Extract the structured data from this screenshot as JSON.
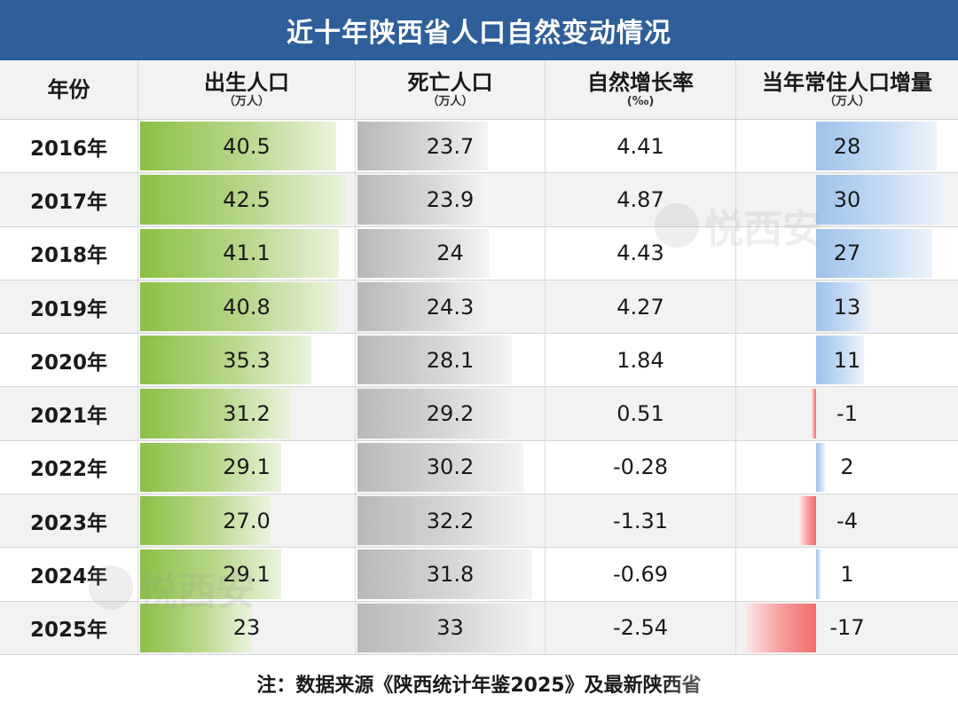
{
  "title": "近十年陕西省人口自然变动情况",
  "headers": {
    "year": "年份",
    "births": "出生人口",
    "births_unit": "（万人）",
    "deaths": "死亡人口",
    "deaths_unit": "（万人）",
    "rate": "自然增长率",
    "rate_unit": "(‰)",
    "increase": "当年常住人口增量",
    "increase_unit": "（万人）"
  },
  "rows": [
    {
      "year": "2016年",
      "births": "40.5",
      "deaths": "23.7",
      "rate": "4.41",
      "increase": "28"
    },
    {
      "year": "2017年",
      "births": "42.5",
      "deaths": "23.9",
      "rate": "4.87",
      "increase": "30"
    },
    {
      "year": "2018年",
      "births": "41.1",
      "deaths": "24",
      "rate": "4.43",
      "increase": "27"
    },
    {
      "year": "2019年",
      "births": "40.8",
      "deaths": "24.3",
      "rate": "4.27",
      "increase": "13"
    },
    {
      "year": "2020年",
      "births": "35.3",
      "deaths": "28.1",
      "rate": "1.84",
      "increase": "11"
    },
    {
      "year": "2021年",
      "births": "31.2",
      "deaths": "29.2",
      "rate": "0.51",
      "increase": "-1"
    },
    {
      "year": "2022年",
      "births": "29.1",
      "deaths": "30.2",
      "rate": "-0.28",
      "increase": "2"
    },
    {
      "year": "2023年",
      "births": "27.0",
      "deaths": "32.2",
      "rate": "-1.31",
      "increase": "-4"
    },
    {
      "year": "2024年",
      "births": "29.1",
      "deaths": "31.8",
      "rate": "-0.69",
      "increase": "1"
    },
    {
      "year": "2025年",
      "births": "23",
      "deaths": "33",
      "rate": "-2.54",
      "increase": "-17"
    }
  ],
  "footer": "注：数据来源《陕西统计年鉴2025》及最新陕西省",
  "watermark": "悦西安",
  "colors": {
    "title_bg": "#2f5f9a",
    "births_bar": "#8cbf45",
    "deaths_bar": "#b8b8b8",
    "increase_pos_bar": "#9fc2ea",
    "increase_neg_bar": "#f26b6b"
  },
  "chart_data": {
    "type": "table",
    "title": "近十年陕西省人口自然变动情况",
    "columns": [
      "年份",
      "出生人口（万人）",
      "死亡人口（万人）",
      "自然增长率(‰)",
      "当年常住人口增量（万人）"
    ],
    "categories": [
      "2016年",
      "2017年",
      "2018年",
      "2019年",
      "2020年",
      "2021年",
      "2022年",
      "2023年",
      "2024年",
      "2025年"
    ],
    "series": [
      {
        "name": "出生人口",
        "values": [
          40.5,
          42.5,
          41.1,
          40.8,
          35.3,
          31.2,
          29.1,
          27.0,
          29.1,
          23
        ]
      },
      {
        "name": "死亡人口",
        "values": [
          23.7,
          23.9,
          24,
          24.3,
          28.1,
          29.2,
          30.2,
          32.2,
          31.8,
          33
        ]
      },
      {
        "name": "自然增长率",
        "values": [
          4.41,
          4.87,
          4.43,
          4.27,
          1.84,
          0.51,
          -0.28,
          -1.31,
          -0.69,
          -2.54
        ]
      },
      {
        "name": "当年常住人口增量",
        "values": [
          28,
          30,
          27,
          13,
          11,
          -1,
          2,
          -4,
          1,
          -17
        ]
      }
    ]
  }
}
